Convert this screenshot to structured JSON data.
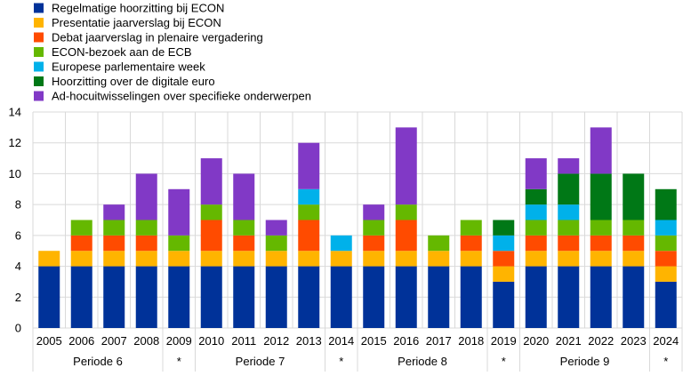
{
  "chart_data": {
    "type": "bar",
    "stacked": true,
    "categories": [
      "2005",
      "2006",
      "2007",
      "2008",
      "2009",
      "2010",
      "2011",
      "2012",
      "2013",
      "2014",
      "2015",
      "2016",
      "2017",
      "2018",
      "2019",
      "2020",
      "2021",
      "2022",
      "2023",
      "2024"
    ],
    "groups": [
      {
        "label": "Periode 6",
        "from": "2005",
        "to": "2008"
      },
      {
        "label": "*",
        "from": "2009",
        "to": "2009"
      },
      {
        "label": "Periode 7",
        "from": "2010",
        "to": "2013"
      },
      {
        "label": "*",
        "from": "2014",
        "to": "2014"
      },
      {
        "label": "Periode 8",
        "from": "2015",
        "to": "2018"
      },
      {
        "label": "*",
        "from": "2019",
        "to": "2019"
      },
      {
        "label": "Periode 9",
        "from": "2020",
        "to": "2023"
      },
      {
        "label": "*",
        "from": "2024",
        "to": "2024"
      }
    ],
    "series": [
      {
        "name": "Regelmatige hoorzitting bij ECON",
        "color": "#003299",
        "values": [
          4,
          4,
          4,
          4,
          4,
          4,
          4,
          4,
          4,
          4,
          4,
          4,
          4,
          4,
          3,
          4,
          4,
          4,
          4,
          3
        ]
      },
      {
        "name": "Presentatie jaarverslag bij ECON",
        "color": "#FFB400",
        "values": [
          1,
          1,
          1,
          1,
          1,
          1,
          1,
          1,
          1,
          1,
          1,
          1,
          1,
          1,
          1,
          1,
          1,
          1,
          1,
          1
        ]
      },
      {
        "name": "Debat jaarverslag in plenaire vergadering",
        "color": "#FF4B00",
        "values": [
          0,
          1,
          1,
          1,
          0,
          2,
          1,
          0,
          2,
          0,
          1,
          2,
          0,
          1,
          1,
          1,
          1,
          1,
          1,
          1
        ]
      },
      {
        "name": "ECON-bezoek aan de ECB",
        "color": "#65B800",
        "values": [
          0,
          1,
          1,
          1,
          1,
          1,
          1,
          1,
          1,
          0,
          1,
          1,
          1,
          1,
          0,
          1,
          1,
          1,
          1,
          1
        ]
      },
      {
        "name": "Europese parlementaire week",
        "color": "#00B1EA",
        "values": [
          0,
          0,
          0,
          0,
          0,
          0,
          0,
          0,
          1,
          1,
          0,
          0,
          0,
          0,
          1,
          1,
          1,
          0,
          0,
          1
        ]
      },
      {
        "name": "Hoorzitting over de digitale euro",
        "color": "#007816",
        "values": [
          0,
          0,
          0,
          0,
          0,
          0,
          0,
          0,
          0,
          0,
          0,
          0,
          0,
          0,
          1,
          1,
          2,
          3,
          3,
          2
        ]
      },
      {
        "name": "Ad-hocuitwisselingen over specifieke onderwerpen",
        "color": "#8139C6",
        "values": [
          0,
          0,
          1,
          3,
          3,
          3,
          3,
          1,
          3,
          0,
          1,
          5,
          0,
          0,
          0,
          2,
          1,
          3,
          0,
          0
        ]
      }
    ],
    "yticks": [
      "0",
      "2",
      "4",
      "6",
      "8",
      "10",
      "12",
      "14"
    ],
    "ylim": [
      0,
      14
    ],
    "grid": true,
    "legend": "top-left",
    "title": "",
    "xlabel": "",
    "ylabel": ""
  }
}
